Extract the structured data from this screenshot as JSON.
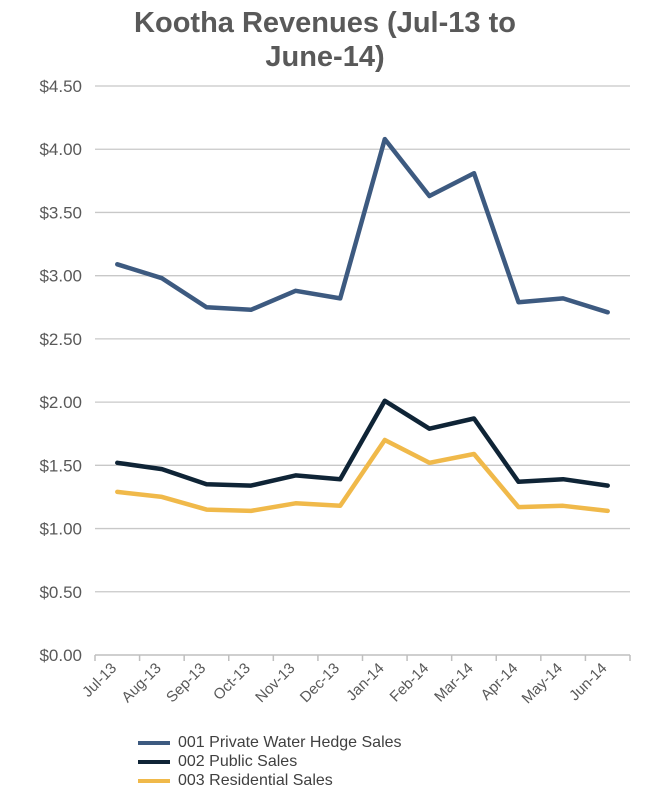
{
  "chart_data": {
    "type": "line",
    "title": [
      "Kootha Revenues (Jul-13 to",
      "June-14)"
    ],
    "categories": [
      "Jul-13",
      "Aug-13",
      "Sep-13",
      "Oct-13",
      "Nov-13",
      "Dec-13",
      "Jan-14",
      "Feb-14",
      "Mar-14",
      "Apr-14",
      "May-14",
      "Jun-14"
    ],
    "y_ticks": [
      "$0.00",
      "$0.50",
      "$1.00",
      "$1.50",
      "$2.00",
      "$2.50",
      "$3.00",
      "$3.50",
      "$4.00",
      "$4.50"
    ],
    "ylim": [
      0,
      4.5
    ],
    "grid": true,
    "legend_position": "bottom",
    "series": [
      {
        "name": "001 Private Water Hedge Sales",
        "color": "#3d5a80",
        "values": [
          3.09,
          2.98,
          2.75,
          2.73,
          2.88,
          2.82,
          4.08,
          3.63,
          3.81,
          2.79,
          2.82,
          2.71
        ]
      },
      {
        "name": "002 Public Sales",
        "color": "#0f2436",
        "values": [
          1.52,
          1.47,
          1.35,
          1.34,
          1.42,
          1.39,
          2.01,
          1.79,
          1.87,
          1.37,
          1.39,
          1.34
        ]
      },
      {
        "name": "003 Residential Sales",
        "color": "#f0b94a",
        "values": [
          1.29,
          1.25,
          1.15,
          1.14,
          1.2,
          1.18,
          1.7,
          1.52,
          1.59,
          1.17,
          1.18,
          1.14
        ]
      }
    ]
  }
}
